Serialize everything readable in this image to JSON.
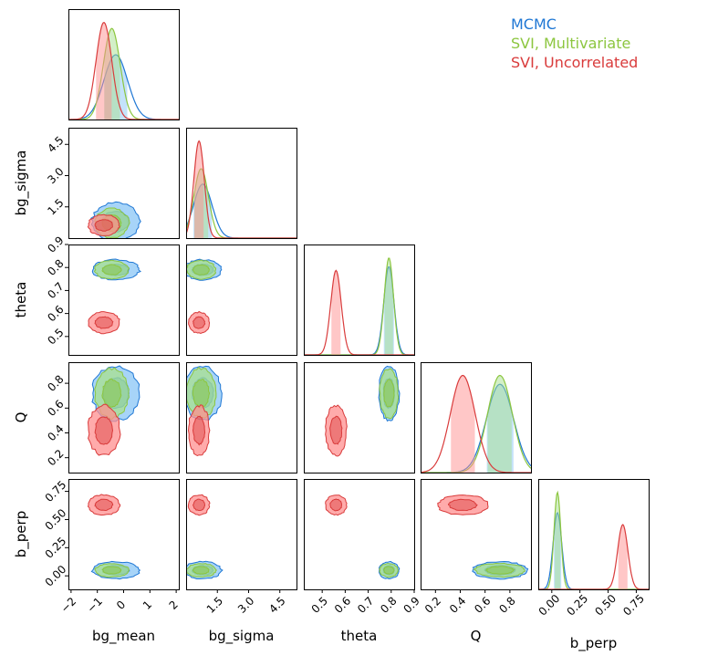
{
  "chart_data": {
    "type": "corner",
    "parameters": [
      "bg_mean",
      "bg_sigma",
      "theta",
      "Q",
      "b_perp"
    ],
    "axis_labels": {
      "bg_mean": "bg_mean",
      "bg_sigma": "bg_sigma",
      "theta": "theta",
      "Q": "Q",
      "b_perp": "b_perp"
    },
    "ranges": {
      "bg_mean": [
        -2.1,
        2.1
      ],
      "bg_sigma": [
        0.0,
        5.3
      ],
      "theta": [
        0.42,
        0.9
      ],
      "Q": [
        0.08,
        0.97
      ],
      "b_perp": [
        -0.12,
        0.86
      ]
    },
    "ticks": {
      "bg_mean": {
        "values": [
          -2,
          -1,
          0,
          1,
          2
        ],
        "labels": [
          "−2",
          "−1",
          "0",
          "1",
          "2"
        ]
      },
      "bg_sigma": {
        "values": [
          1.5,
          3.0,
          4.5
        ],
        "labels": [
          "1.5",
          "3.0",
          "4.5"
        ]
      },
      "theta": {
        "values": [
          0.5,
          0.6,
          0.7,
          0.8,
          0.9
        ],
        "labels": [
          "0.5",
          "0.6",
          "0.7",
          "0.8",
          "0.9"
        ]
      },
      "Q": {
        "values": [
          0.2,
          0.4,
          0.6,
          0.8
        ],
        "labels": [
          "0.2",
          "0.4",
          "0.6",
          "0.8"
        ]
      },
      "b_perp": {
        "values": [
          0.0,
          0.25,
          0.5,
          0.75
        ],
        "labels": [
          "0.00",
          "0.25",
          "0.50",
          "0.75"
        ]
      }
    },
    "series": [
      {
        "name": "MCMC",
        "color": "#1f77d4",
        "fill": "#8ac6f6",
        "means": {
          "bg_mean": -0.3,
          "bg_sigma": 0.8,
          "theta": 0.79,
          "Q": 0.72,
          "b_perp": 0.05
        },
        "stds": {
          "bg_mean": 0.45,
          "bg_sigma": 0.45,
          "theta": 0.022,
          "Q": 0.11,
          "b_perp": 0.038
        }
      },
      {
        "name": "SVI, Multivariate",
        "color": "#8cc63f",
        "fill": "#a8e08f",
        "means": {
          "bg_mean": -0.45,
          "bg_sigma": 0.72,
          "theta": 0.79,
          "Q": 0.72,
          "b_perp": 0.05
        },
        "stds": {
          "bg_mean": 0.32,
          "bg_sigma": 0.35,
          "theta": 0.02,
          "Q": 0.1,
          "b_perp": 0.03
        }
      },
      {
        "name": "SVI, Uncorrelated",
        "color": "#d93b3b",
        "fill": "#ff8f8f",
        "means": {
          "bg_mean": -0.75,
          "bg_sigma": 0.62,
          "theta": 0.56,
          "Q": 0.42,
          "b_perp": 0.63
        },
        "stds": {
          "bg_mean": 0.3,
          "bg_sigma": 0.25,
          "theta": 0.023,
          "Q": 0.1,
          "b_perp": 0.045
        }
      }
    ],
    "legend": {
      "placement": "top-right"
    },
    "grid": false
  }
}
